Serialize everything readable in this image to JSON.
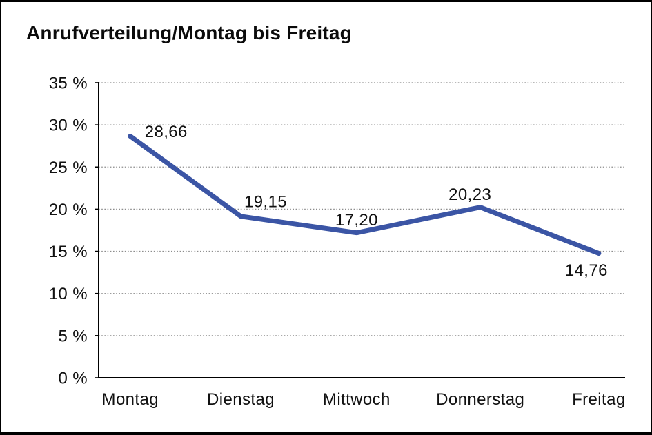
{
  "window": {
    "background": "#ffffff",
    "frame_color": "#000000"
  },
  "chart_data": {
    "type": "line",
    "title": "Anrufverteilung/Montag bis Freitag",
    "categories": [
      "Montag",
      "Dienstag",
      "Mittwoch",
      "Donnerstag",
      "Freitag"
    ],
    "series": [
      {
        "name": "Anrufverteilung",
        "values": [
          28.66,
          19.15,
          17.2,
          20.23,
          14.76
        ]
      }
    ],
    "value_labels": [
      "28,66",
      "19,15",
      "17,20",
      "20,23",
      "14,76"
    ],
    "xlabel": "",
    "ylabel": "",
    "ylim": [
      0,
      35
    ],
    "y_tick_step": 5,
    "y_ticks": [
      {
        "value": 35,
        "label": "35 %"
      },
      {
        "value": 30,
        "label": "30 %"
      },
      {
        "value": 25,
        "label": "25 %"
      },
      {
        "value": 20,
        "label": "20 %"
      },
      {
        "value": 15,
        "label": "15 %"
      },
      {
        "value": 10,
        "label": "10 %"
      },
      {
        "value": 5,
        "label": "5 %"
      },
      {
        "value": 0,
        "label": "0 %"
      }
    ],
    "grid": "horizontal-dotted",
    "legend": "none",
    "colors": {
      "line": "#3B55A5",
      "axis": "#000000",
      "grid": "#8c8c8c",
      "text": "#111111"
    }
  }
}
